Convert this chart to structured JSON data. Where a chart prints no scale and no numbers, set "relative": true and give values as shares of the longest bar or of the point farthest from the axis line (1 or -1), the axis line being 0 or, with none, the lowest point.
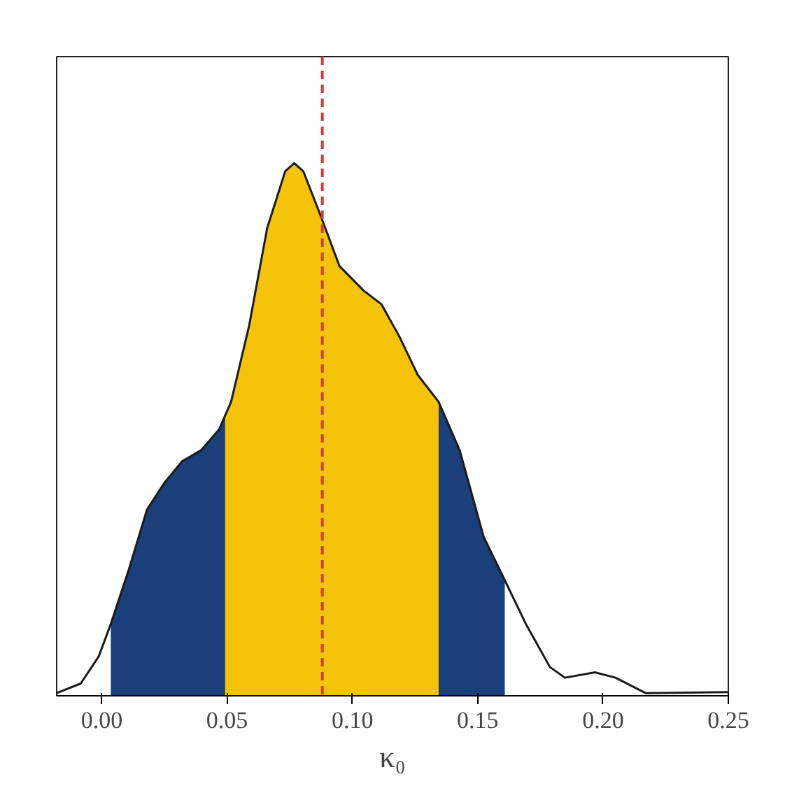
{
  "chart_data": {
    "type": "area",
    "xlabel": "κ₀",
    "relative": true,
    "xlim": [
      -0.018,
      0.25
    ],
    "xticks": [
      {
        "value": 0,
        "label": "0.00"
      },
      {
        "value": 0.05,
        "label": "0.05"
      },
      {
        "value": 0.1,
        "label": "0.10"
      },
      {
        "value": 0.15,
        "label": "0.15"
      },
      {
        "value": 0.2,
        "label": "0.20"
      },
      {
        "value": 0.25,
        "label": "0.25"
      }
    ],
    "series": [
      {
        "color": "#1a3f7a",
        "x": [
          0.0036,
          0.0108,
          0.018,
          0.025,
          0.032,
          0.0396,
          0.0468,
          0.0516,
          0.0588,
          0.066,
          0.0732,
          0.0768,
          0.0804,
          0.0876,
          0.0948,
          0.1044,
          0.1116,
          0.1188,
          0.126,
          0.1344,
          0.1428,
          0.1524,
          0.1608
        ],
        "values": [
          0.135,
          0.237,
          0.349,
          0.4,
          0.44,
          0.461,
          0.5,
          0.552,
          0.695,
          0.878,
          0.985,
          1.0,
          0.985,
          0.898,
          0.807,
          0.761,
          0.735,
          0.674,
          0.603,
          0.552,
          0.461,
          0.298,
          0.217
        ]
      },
      {
        "color": "#f5c30a",
        "x": [
          0.0492,
          0.0516,
          0.0588,
          0.066,
          0.0732,
          0.0768,
          0.0804,
          0.0876,
          0.0948,
          0.1044,
          0.1116,
          0.1188,
          0.126,
          0.1344
        ],
        "values": [
          0.53,
          0.552,
          0.695,
          0.878,
          0.985,
          1.0,
          0.985,
          0.898,
          0.807,
          0.761,
          0.735,
          0.674,
          0.603,
          0.552
        ]
      },
      {
        "type": "line",
        "color": "#1a1a1a",
        "x": [
          -0.018,
          -0.0084,
          -0.0012,
          0.0036,
          0.0108,
          0.018,
          0.025,
          0.032,
          0.0396,
          0.0468,
          0.0516,
          0.0588,
          0.066,
          0.0732,
          0.0768,
          0.0804,
          0.0876,
          0.0948,
          0.1044,
          0.1116,
          0.1188,
          0.126,
          0.1344,
          0.1428,
          0.1524,
          0.1608,
          0.1692,
          0.1788,
          0.1848,
          0.1968,
          0.205,
          0.217,
          0.25
        ],
        "values": [
          0.005,
          0.023,
          0.074,
          0.135,
          0.237,
          0.349,
          0.4,
          0.44,
          0.461,
          0.5,
          0.552,
          0.695,
          0.878,
          0.985,
          1.0,
          0.985,
          0.898,
          0.807,
          0.761,
          0.735,
          0.674,
          0.603,
          0.552,
          0.461,
          0.298,
          0.217,
          0.135,
          0.054,
          0.034,
          0.044,
          0.034,
          0.005,
          0.007
        ]
      }
    ],
    "ref_lines": [
      {
        "axis": "x",
        "value": 0.088,
        "color": "#d04040",
        "line_style": "dashed"
      }
    ]
  }
}
